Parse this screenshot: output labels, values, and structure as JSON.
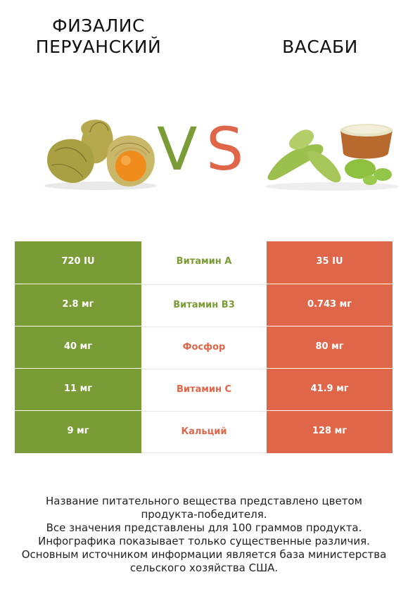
{
  "left_title": "Физалис перуанский",
  "right_title": "Васаби",
  "vs_v": "V",
  "vs_s": "S",
  "colors": {
    "left": "#7a9c36",
    "right": "#e0664a"
  },
  "rows": [
    {
      "left": "720 IU",
      "nutrient": "Витамин A",
      "right": "35 IU",
      "winner": "left"
    },
    {
      "left": "2.8 мг",
      "nutrient": "Витамин B3",
      "right": "0.743 мг",
      "winner": "left"
    },
    {
      "left": "40 мг",
      "nutrient": "Фосфор",
      "right": "80 мг",
      "winner": "right"
    },
    {
      "left": "11 мг",
      "nutrient": "Витамин C",
      "right": "41.9 мг",
      "winner": "right"
    },
    {
      "left": "9 мг",
      "nutrient": "Кальций",
      "right": "128 мг",
      "winner": "right"
    }
  ],
  "footer": [
    "Название питательного вещества представлено цветом",
    "продукта-победителя.",
    "Все значения представлены для 100 граммов продукта.",
    "Инфографика показывает только существенные различия.",
    "Основным источником информации является база министерства",
    "сельского хозяйства США."
  ]
}
